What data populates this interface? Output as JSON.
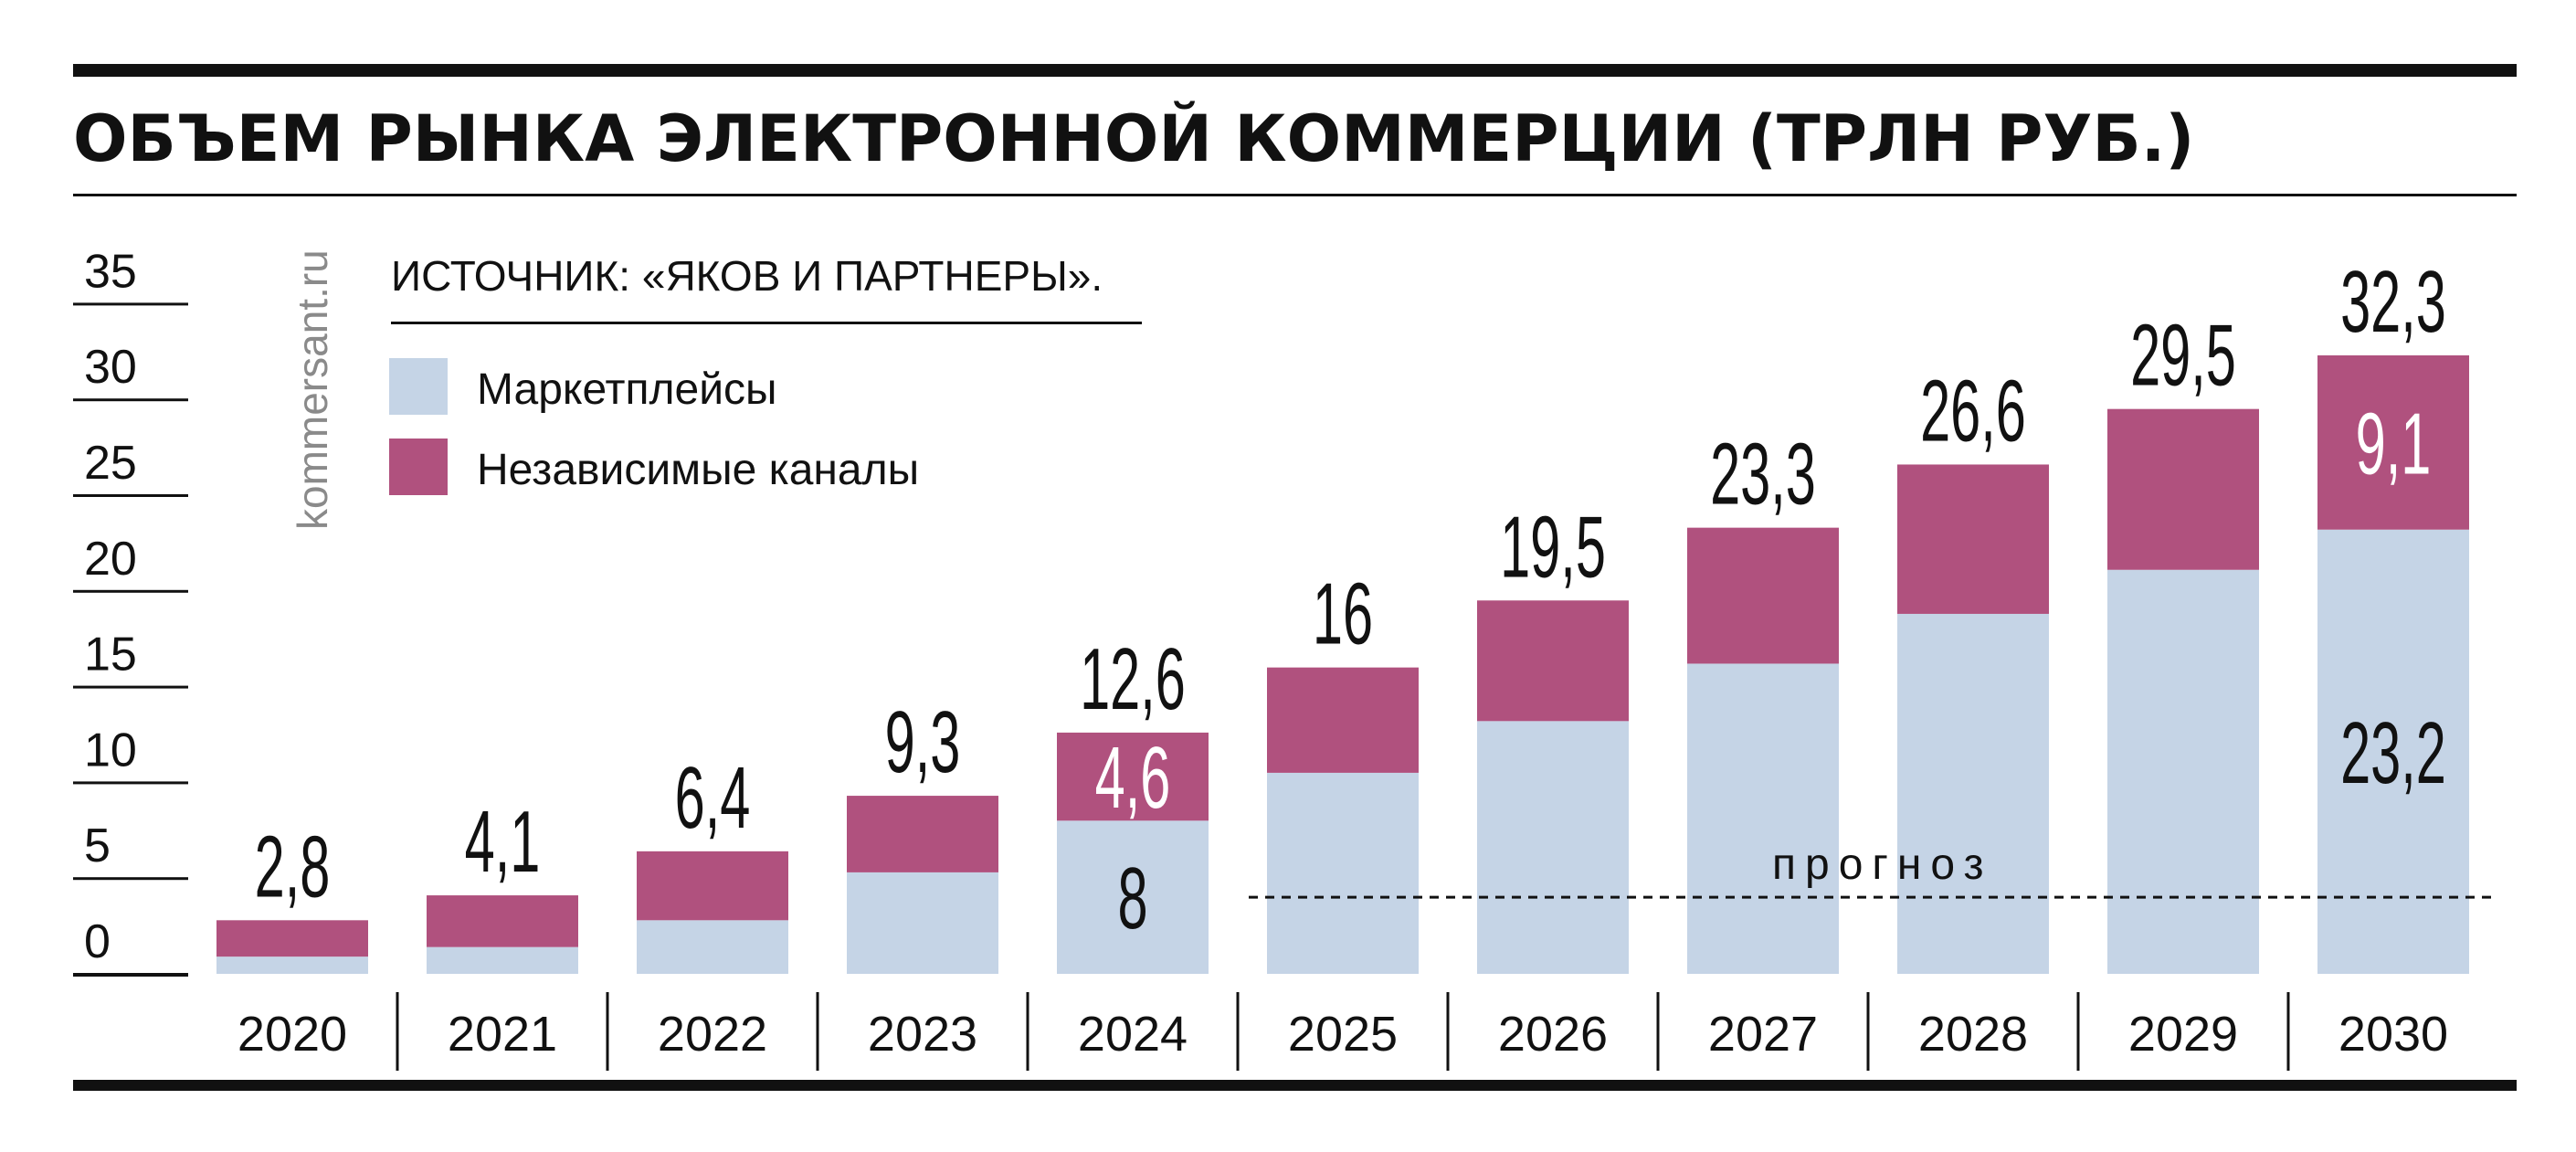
{
  "title": "ОБЪЕМ РЫНКА ЭЛЕКТРОННОЙ КОММЕРЦИИ (ТРЛН РУБ.)",
  "source": "ИСТОЧНИК: «ЯКОВ И ПАРТНЕРЫ».",
  "watermark": "kommersant.ru",
  "forecast_label": "прогноз",
  "colors": {
    "marketplaces": "#c5d4e6",
    "independent": "#b0517e",
    "ink": "#111111",
    "watermark": "#8a8a8a"
  },
  "chart_data": {
    "type": "bar",
    "stacked": true,
    "categories": [
      "2020",
      "2021",
      "2022",
      "2023",
      "2024",
      "2025",
      "2026",
      "2027",
      "2028",
      "2029",
      "2030"
    ],
    "series": [
      {
        "name": "Маркетплейсы",
        "values": [
          0.9,
          1.4,
          2.8,
          5.3,
          8.0,
          10.5,
          13.2,
          16.2,
          18.8,
          21.1,
          23.2
        ]
      },
      {
        "name": "Независимые каналы",
        "values": [
          1.9,
          2.7,
          3.6,
          4.0,
          4.6,
          5.5,
          6.3,
          7.1,
          7.8,
          8.4,
          9.1
        ]
      }
    ],
    "totals": [
      "2,8",
      "4,1",
      "6,4",
      "9,3",
      "12,6",
      "16",
      "19,5",
      "23,3",
      "26,6",
      "29,5",
      "32,3"
    ],
    "segment_labels": [
      {
        "category": "2024",
        "marketplaces": "8",
        "independent": "4,6"
      },
      {
        "category": "2030",
        "marketplaces": "23,2",
        "independent": "9,1"
      }
    ],
    "ylim": [
      0,
      35
    ],
    "yticks": [
      "0",
      "5",
      "10",
      "15",
      "20",
      "25",
      "30",
      "35"
    ],
    "forecast_from": "2025",
    "forecast_level": 4,
    "legend_position": "top-left",
    "title": "ОБЪЕМ РЫНКА ЭЛЕКТРОННОЙ КОММЕРЦИИ (ТРЛН РУБ.)"
  }
}
